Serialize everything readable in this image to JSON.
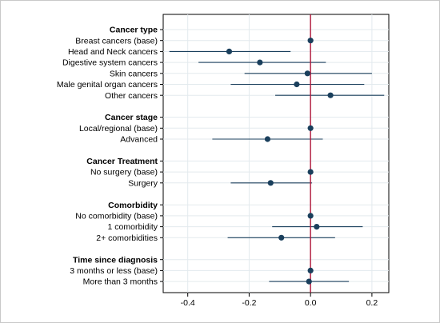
{
  "chart_data": {
    "type": "forest",
    "xlim": [
      -0.48,
      0.255
    ],
    "xticks": [
      -0.4,
      -0.2,
      0.0,
      0.2
    ],
    "xtick_labels": [
      "-0.4",
      "-0.2",
      "0.0",
      "0.2"
    ],
    "reference_line": 0,
    "colors": {
      "point": "#1a3f5c",
      "ci": "#1a3f5c",
      "reference": "#b0173a",
      "grid": "#e3eaee",
      "frame": "#000000",
      "outer_border": "#c9c9c9"
    },
    "groups": [
      {
        "header": "Cancer type",
        "rows": [
          {
            "label": "Breast cancers (base)",
            "est": 0.0,
            "lo": null,
            "hi": null
          },
          {
            "label": "Head and Neck cancers",
            "est": -0.265,
            "lo": -0.46,
            "hi": -0.065
          },
          {
            "label": "Digestive system cancers",
            "est": -0.165,
            "lo": -0.365,
            "hi": 0.05
          },
          {
            "label": "Skin cancers",
            "est": -0.01,
            "lo": -0.215,
            "hi": 0.2
          },
          {
            "label": "Male genital organ cancers",
            "est": -0.045,
            "lo": -0.26,
            "hi": 0.175
          },
          {
            "label": "Other cancers",
            "est": 0.065,
            "lo": -0.115,
            "hi": 0.24
          }
        ]
      },
      {
        "header": "Cancer stage",
        "rows": [
          {
            "label": "Local/regional (base)",
            "est": 0.0,
            "lo": null,
            "hi": null
          },
          {
            "label": "Advanced",
            "est": -0.14,
            "lo": -0.32,
            "hi": 0.04
          }
        ]
      },
      {
        "header": "Cancer Treatment",
        "rows": [
          {
            "label": "No surgery (base)",
            "est": 0.0,
            "lo": null,
            "hi": null
          },
          {
            "label": "Surgery",
            "est": -0.13,
            "lo": -0.26,
            "hi": 0.005
          }
        ]
      },
      {
        "header": "Comorbidity",
        "rows": [
          {
            "label": "No comorbidity (base)",
            "est": 0.0,
            "lo": null,
            "hi": null
          },
          {
            "label": "1 comorbidity",
            "est": 0.02,
            "lo": -0.125,
            "hi": 0.17
          },
          {
            "label": "2+ comorbidities",
            "est": -0.095,
            "lo": -0.27,
            "hi": 0.08
          }
        ]
      },
      {
        "header": "Time since diagnosis",
        "rows": [
          {
            "label": "3 months or less (base)",
            "est": 0.0,
            "lo": null,
            "hi": null
          },
          {
            "label": "More than 3 months",
            "est": -0.005,
            "lo": -0.135,
            "hi": 0.125
          }
        ]
      }
    ]
  }
}
